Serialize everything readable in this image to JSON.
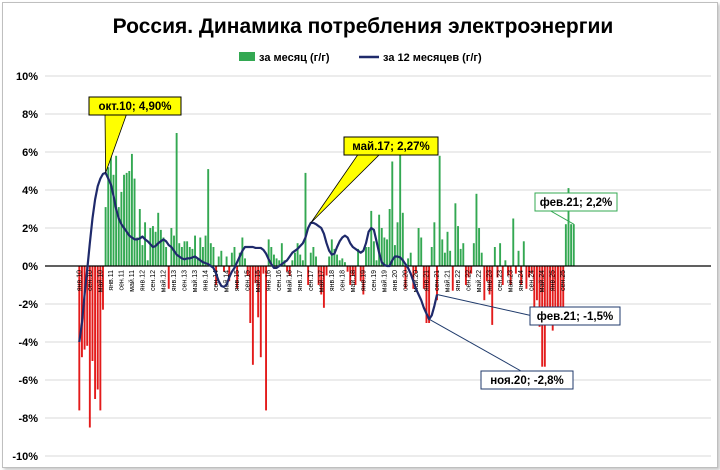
{
  "chart_data": {
    "type": "bar",
    "title": "Россия. Динамика потребления электроэнергии",
    "legend_position": "top-center",
    "ylim": [
      -10,
      10
    ],
    "y_unit": "%",
    "y_ticks": [
      "10%",
      "8%",
      "6%",
      "4%",
      "2%",
      "0%",
      "-2%",
      "-4%",
      "-6%",
      "-8%",
      "-10%"
    ],
    "x_tick_labels": [
      "янв.10",
      "сен.10",
      "май.10",
      "янв.11",
      "сен.11",
      "май.11",
      "янв.12",
      "сен.12",
      "май.12",
      "янв.13",
      "сен.13",
      "май.13",
      "янв.14",
      "сен.14",
      "май.14",
      "янв.15",
      "сен.15",
      "май.15",
      "янв.16",
      "сен.16",
      "май.16",
      "янв.17",
      "сен.17",
      "май.17",
      "янв.18",
      "сен.18",
      "май.18",
      "янв.19",
      "сен.19",
      "май.19",
      "янв.20",
      "сен.20",
      "май.20",
      "янв.21",
      "сен.21",
      "май.21",
      "янв.22",
      "сен.22",
      "май.22",
      "янв.23",
      "сен.23",
      "май.23",
      "янв.24",
      "сен.24",
      "май.24",
      "янв.25",
      "сен.25"
    ],
    "colors": {
      "positive": "#33a852",
      "negative": "#e31b1b",
      "line": "#1f2a6b",
      "callout_yellow": "#ffff00",
      "callout_blue_border": "#1f3a6b"
    },
    "series": [
      {
        "name": "за месяц (г/г)",
        "kind": "bar",
        "values": [
          -7.6,
          -4.8,
          -4.4,
          -4.2,
          -8.5,
          -5.0,
          -7.0,
          -6.5,
          -7.6,
          -2.3,
          3.1,
          5.2,
          7.6,
          4.8,
          5.8,
          3.1,
          3.9,
          4.8,
          4.9,
          5.0,
          5.9,
          4.6,
          1.5,
          3.0,
          1.1,
          2.3,
          0.3,
          2.0,
          2.1,
          1.8,
          2.8,
          1.9,
          1.5,
          1.0,
          -1.2,
          2.0,
          1.6,
          7.0,
          1.2,
          1.0,
          1.3,
          1.3,
          1.0,
          0.9,
          1.6,
          0.4,
          1.5,
          1.0,
          1.6,
          5.1,
          1.2,
          1.0,
          -1.0,
          0.5,
          0.8,
          -0.3,
          0.5,
          -0.8,
          0.7,
          1.0,
          -1.2,
          0.7,
          1.5,
          0.4,
          -0.5,
          -3.0,
          -5.2,
          -0.9,
          -2.7,
          -4.8,
          -0.4,
          -7.6,
          1.4,
          1.0,
          0.6,
          0.4,
          0.3,
          1.2,
          0.3,
          -0.3,
          -0.5,
          0.3,
          0.7,
          1.2,
          0.6,
          0.3,
          4.9,
          -1.0,
          0.7,
          1.0,
          0.5,
          -1.0,
          -1.5,
          -2.2,
          -0.5,
          0.5,
          1.4,
          0.9,
          0.6,
          0.3,
          0.4,
          0.2,
          -0.3,
          -1.0,
          -0.5,
          -1.0,
          0.9,
          -0.8,
          -1.5,
          1.0,
          1.0,
          2.9,
          1.3,
          0.3,
          2.7,
          2.0,
          1.5,
          1.4,
          3.0,
          5.5,
          1.1,
          2.3,
          6.0,
          2.8,
          -1.2,
          0.4,
          0.7,
          -1.2,
          -0.4,
          2.0,
          1.5,
          -1.2,
          -3.0,
          -3.0,
          1.0,
          2.3,
          -1.8,
          5.8,
          1.4,
          0.7,
          1.8,
          0.8,
          -1.3,
          3.3,
          2.1,
          0.9,
          1.2,
          -1.0,
          -0.6,
          -0.4,
          1.2,
          3.8,
          2.0,
          0.7,
          -1.8,
          -0.8,
          -1.5,
          -3.1,
          1.0,
          -0.6,
          1.2,
          -1.0,
          0.3,
          -0.5,
          -1.0,
          2.5,
          -0.4,
          0.8,
          -1.0,
          1.3,
          -1.2,
          -0.6,
          -0.4,
          -2.5,
          -1.8,
          -3.2,
          -5.3,
          -5.3,
          -2.4,
          -2.8,
          -3.4,
          -2.8,
          -2.4,
          -2.6,
          -2.8,
          2.2,
          4.1,
          2.2,
          2.2
        ]
      },
      {
        "name": "за 12 месяцев (г/г)",
        "kind": "line",
        "values": [
          -4.0,
          -3.0,
          -1.5,
          -0.2,
          1.2,
          2.5,
          3.5,
          4.2,
          4.6,
          4.85,
          4.9,
          4.6,
          4.3,
          3.7,
          3.0,
          2.5,
          2.2,
          2.0,
          1.8,
          1.6,
          1.5,
          1.4,
          1.4,
          1.45,
          1.55,
          1.4,
          1.3,
          1.15,
          1.0,
          1.05,
          1.2,
          1.3,
          1.4,
          1.3,
          1.1,
          1.0,
          0.8,
          0.6,
          0.5,
          0.4,
          0.35,
          0.4,
          0.4,
          0.45,
          0.5,
          0.4,
          0.3,
          0.2,
          0.15,
          0.1,
          0.0,
          -0.1,
          -0.4,
          -0.8,
          -1.05,
          -1.1,
          -1.0,
          -0.6,
          -0.3,
          -0.1,
          0.2,
          0.5,
          0.8,
          1.0,
          1.0,
          1.0,
          1.0,
          0.95,
          0.95,
          0.95,
          0.85,
          0.65,
          0.35,
          0.1,
          -0.1,
          -0.1,
          0.0,
          0.1,
          0.2,
          0.3,
          0.5,
          0.7,
          0.8,
          0.9,
          1.05,
          1.2,
          1.5,
          2.0,
          2.27,
          2.27,
          2.2,
          2.1,
          2.0,
          1.7,
          1.2,
          0.8,
          0.6,
          0.65,
          1.0,
          1.3,
          1.5,
          1.6,
          1.5,
          1.2,
          1.0,
          0.9,
          0.8,
          0.7,
          0.8,
          1.2,
          1.8,
          2.0,
          1.9,
          1.3,
          0.7,
          0.2,
          0.05,
          0.0,
          0.0,
          0.3,
          0.5,
          0.5,
          0.45,
          0.3,
          0.1,
          -0.1,
          -0.4,
          -0.8,
          -1.2,
          -1.5,
          -1.8,
          -2.2,
          -2.5,
          -2.8,
          -2.6,
          -2.1,
          -1.5
        ]
      }
    ],
    "annotations": [
      {
        "text": "окт.10; 4,90%",
        "series": "за 12 месяцев (г/г)",
        "value": 4.9,
        "style": "yellow"
      },
      {
        "text": "май.17; 2,27%",
        "series": "за 12 месяцев (г/г)",
        "value": 2.27,
        "style": "yellow"
      },
      {
        "text": "фев.21; 2,2%",
        "series": "за месяц (г/г)",
        "value": 2.2,
        "style": "green-border"
      },
      {
        "text": "фев.21; -1,5%",
        "series": "за 12 месяцев (г/г)",
        "value": -1.5,
        "style": "blue-border"
      },
      {
        "text": "ноя.20; -2,8%",
        "series": "за 12 месяцев (г/г)",
        "value": -2.8,
        "style": "blue-border"
      }
    ]
  }
}
